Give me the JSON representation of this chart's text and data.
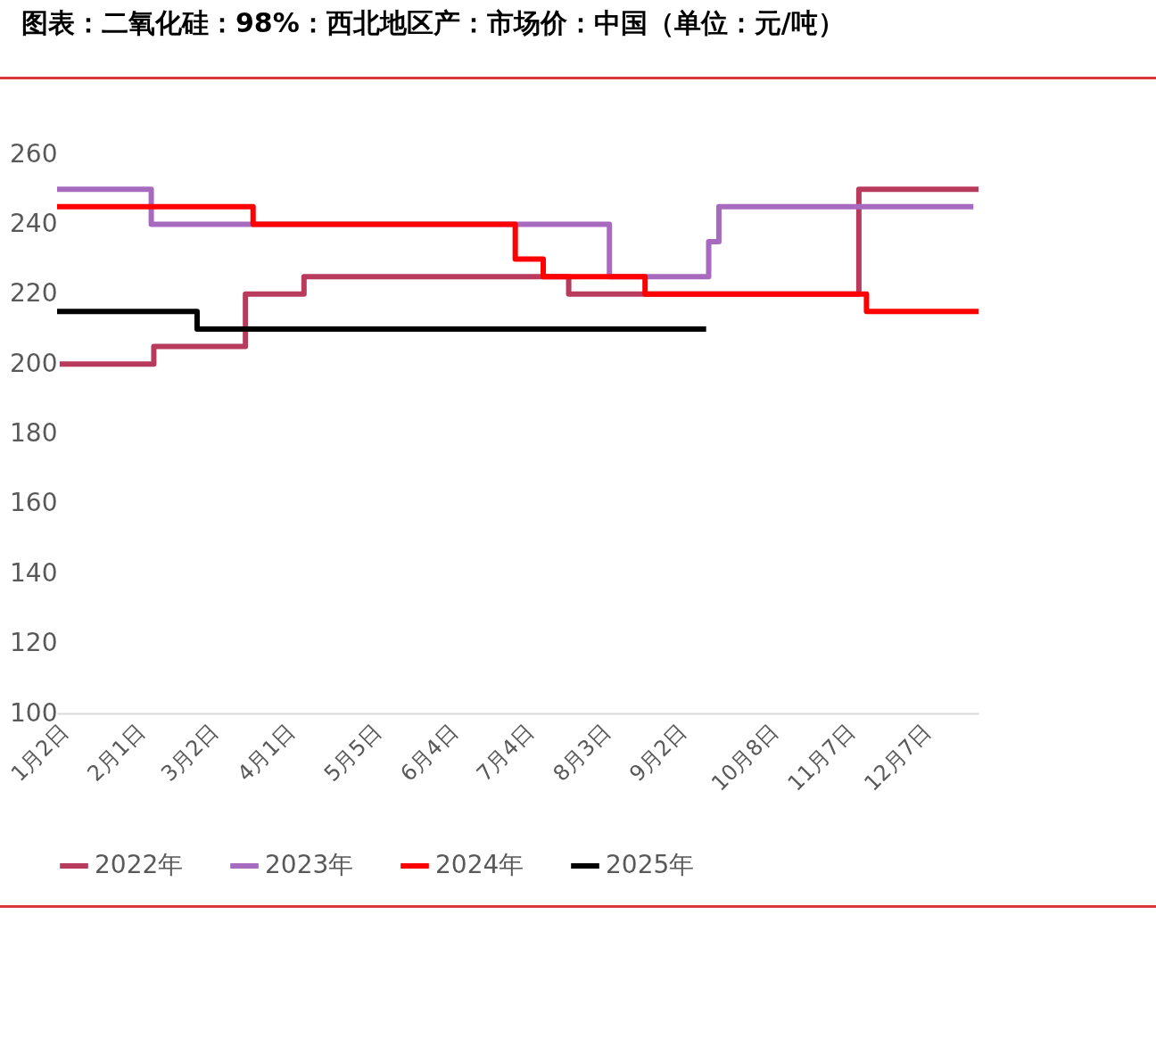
{
  "chart_data": {
    "type": "step",
    "title": "图表：二氧化硅：98%：西北地区产：市场价：中国（单位：元/吨）",
    "xlim": [
      "--01-02",
      "--12-30"
    ],
    "xticks": [
      {
        "value": "--01-02",
        "label": "1月2日"
      },
      {
        "value": "--02-01",
        "label": "2月1日"
      },
      {
        "value": "--03-02",
        "label": "3月2日"
      },
      {
        "value": "--04-01",
        "label": "4月1日"
      },
      {
        "value": "--05-05",
        "label": "5月5日"
      },
      {
        "value": "--06-04",
        "label": "6月4日"
      },
      {
        "value": "--07-04",
        "label": "7月4日"
      },
      {
        "value": "--08-03",
        "label": "8月3日"
      },
      {
        "value": "--09-02",
        "label": "9月2日"
      },
      {
        "value": "--10-08",
        "label": "10月8日"
      },
      {
        "value": "--11-07",
        "label": "11月7日"
      },
      {
        "value": "--12-07",
        "label": "12月7日"
      }
    ],
    "ylim": [
      100,
      260
    ],
    "yticks": [
      100,
      120,
      140,
      160,
      180,
      200,
      220,
      240,
      260
    ],
    "grid": false,
    "legend": "bottom",
    "series": [
      {
        "name": "2022年",
        "color": "#b83b5e",
        "x": [
          "--01-03",
          "--02-09",
          "--03-17",
          "--04-09",
          "--07-22",
          "--11-13",
          "--12-30"
        ],
        "values": [
          200,
          205,
          220,
          225,
          220,
          250,
          250
        ]
      },
      {
        "name": "2023年",
        "color": "#a66bbf",
        "x": [
          "--01-02",
          "--02-08",
          "--08-07",
          "--09-15",
          "--09-19",
          "--12-28"
        ],
        "values": [
          250,
          240,
          225,
          235,
          245,
          245
        ]
      },
      {
        "name": "2024年",
        "color": "#ff0000",
        "x": [
          "--01-02",
          "--03-20",
          "--07-01",
          "--07-12",
          "--08-21",
          "--11-16",
          "--12-30"
        ],
        "values": [
          245,
          240,
          230,
          225,
          220,
          215,
          215
        ]
      },
      {
        "name": "2025年",
        "color": "#000000",
        "x": [
          "--01-02",
          "--02-26",
          "--09-14"
        ],
        "values": [
          215,
          210,
          210
        ]
      }
    ]
  }
}
